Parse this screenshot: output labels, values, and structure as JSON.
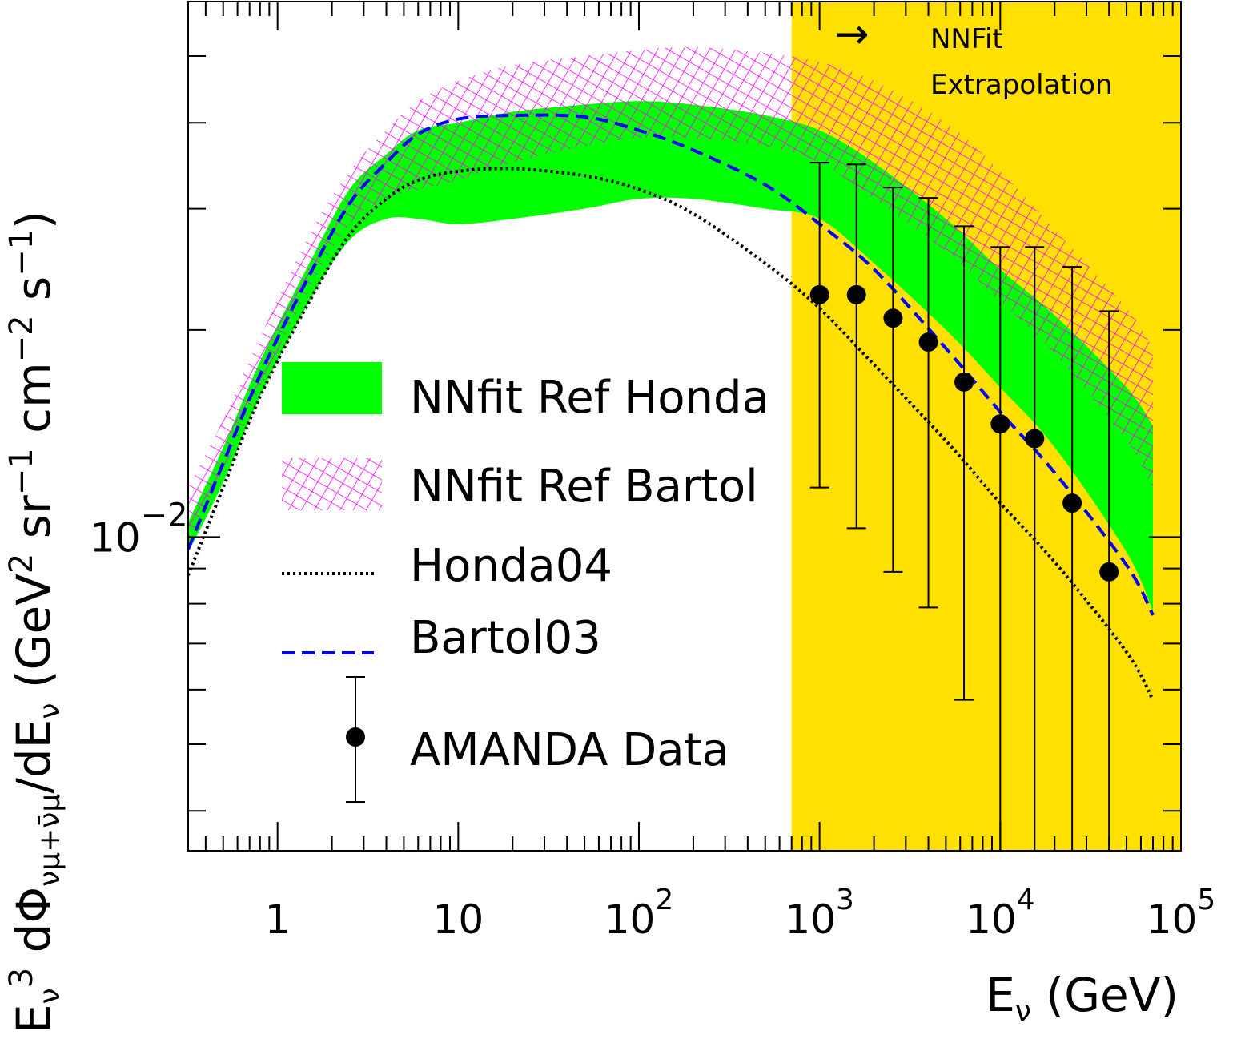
{
  "chart_data": {
    "type": "line",
    "title": "",
    "xlabel": "E_ν (GeV)",
    "ylabel": "E_ν³ dΦ_νμ+ν̄μ / dE_ν (GeV² sr⁻¹ cm⁻² s⁻¹)",
    "x_scale": "log",
    "y_scale": "log",
    "xlim": [
      0.32,
      100000
    ],
    "ylim": [
      0.0035,
      0.06
    ],
    "x_ticks": [
      {
        "value": 1,
        "label": "1"
      },
      {
        "value": 10,
        "label": "10"
      },
      {
        "value": 100,
        "label": "10",
        "sup": "2"
      },
      {
        "value": 1000,
        "label": "10",
        "sup": "3"
      },
      {
        "value": 10000,
        "label": "10",
        "sup": "4"
      },
      {
        "value": 100000,
        "label": "10",
        "sup": "5"
      }
    ],
    "y_ticks": [
      {
        "value": 0.01,
        "label": "10",
        "sup": "−2"
      }
    ],
    "extrapolation_region": {
      "from": 700,
      "to": 100000,
      "color": "#ffe000"
    },
    "annotation": {
      "arrow": "→",
      "line1": "NNFit",
      "line2": "Extrapolation"
    },
    "series": [
      {
        "name": "NNfit Ref Honda",
        "kind": "band",
        "color": "#00ff00",
        "x": [
          0.32,
          0.5,
          0.8,
          1.5,
          2.5,
          4,
          6,
          10,
          20,
          50,
          100,
          200,
          500,
          1000,
          2000,
          5000,
          10000,
          20000,
          50000,
          70000
        ],
        "lower": [
          0.0095,
          0.012,
          0.016,
          0.022,
          0.027,
          0.029,
          0.029,
          0.0285,
          0.029,
          0.03,
          0.031,
          0.031,
          0.03,
          0.029,
          0.025,
          0.02,
          0.0165,
          0.0135,
          0.0095,
          0.0078
        ],
        "upper": [
          0.0105,
          0.0135,
          0.018,
          0.025,
          0.032,
          0.036,
          0.039,
          0.04,
          0.0415,
          0.0425,
          0.043,
          0.0425,
          0.041,
          0.039,
          0.035,
          0.029,
          0.0245,
          0.021,
          0.0165,
          0.0145
        ]
      },
      {
        "name": "NNfit Ref Bartol",
        "kind": "hatched-band",
        "color": "#ff00ff",
        "x": [
          0.32,
          0.5,
          0.8,
          1.5,
          2.5,
          4,
          6,
          10,
          20,
          50,
          100,
          200,
          500,
          1000,
          2000,
          5000,
          10000,
          20000,
          50000,
          70000
        ],
        "lower": [
          0.0098,
          0.0125,
          0.0165,
          0.023,
          0.0285,
          0.031,
          0.032,
          0.033,
          0.035,
          0.037,
          0.038,
          0.038,
          0.037,
          0.035,
          0.031,
          0.026,
          0.022,
          0.0185,
          0.0138,
          0.0118
        ],
        "upper": [
          0.0118,
          0.0148,
          0.0195,
          0.0275,
          0.034,
          0.039,
          0.043,
          0.046,
          0.0485,
          0.05,
          0.051,
          0.0515,
          0.0505,
          0.049,
          0.046,
          0.04,
          0.034,
          0.028,
          0.0215,
          0.0188
        ]
      },
      {
        "name": "Honda04",
        "kind": "line",
        "style": "dotted",
        "color": "#000000",
        "x": [
          0.32,
          0.5,
          0.8,
          1.5,
          2.5,
          4,
          6,
          10,
          20,
          50,
          100,
          200,
          500,
          1000,
          2000,
          5000,
          10000,
          20000,
          50000,
          70000
        ],
        "values": [
          0.0088,
          0.0118,
          0.016,
          0.022,
          0.0275,
          0.031,
          0.033,
          0.034,
          0.0343,
          0.0335,
          0.032,
          0.0295,
          0.025,
          0.0215,
          0.0178,
          0.0138,
          0.0112,
          0.0092,
          0.0068,
          0.0058
        ]
      },
      {
        "name": "Bartol03",
        "kind": "line",
        "style": "dashed",
        "color": "#0000ff",
        "x": [
          0.32,
          0.5,
          0.8,
          1.5,
          2.5,
          4,
          6,
          10,
          20,
          50,
          100,
          200,
          500,
          1000,
          2000,
          5000,
          10000,
          20000,
          50000,
          70000
        ],
        "values": [
          0.0096,
          0.0128,
          0.0172,
          0.024,
          0.0305,
          0.035,
          0.0385,
          0.0405,
          0.041,
          0.0408,
          0.039,
          0.0365,
          0.0325,
          0.0285,
          0.0245,
          0.0188,
          0.0152,
          0.0124,
          0.0091,
          0.0077
        ]
      }
    ],
    "amanda_data": {
      "name": "AMANDA Data",
      "kind": "points-with-errors",
      "color": "#000000",
      "points": [
        {
          "x": 1000,
          "y": 0.0225,
          "lo": 0.0118,
          "hi": 0.035
        },
        {
          "x": 1600,
          "y": 0.0225,
          "lo": 0.0103,
          "hi": 0.0348
        },
        {
          "x": 2550,
          "y": 0.0208,
          "lo": 0.0089,
          "hi": 0.0322
        },
        {
          "x": 4000,
          "y": 0.0192,
          "lo": 0.0079,
          "hi": 0.0311
        },
        {
          "x": 6300,
          "y": 0.0168,
          "lo": 0.0058,
          "hi": 0.0283
        },
        {
          "x": 10000,
          "y": 0.0146,
          "lo": 0.0035,
          "hi": 0.0264
        },
        {
          "x": 15500,
          "y": 0.0139,
          "lo": 0.0035,
          "hi": 0.0264
        },
        {
          "x": 25000,
          "y": 0.0112,
          "lo": 0.0035,
          "hi": 0.0247
        },
        {
          "x": 40000,
          "y": 0.0089,
          "lo": 0.0035,
          "hi": 0.0213
        }
      ]
    },
    "legend": {
      "placement": "lower-left",
      "entries": [
        {
          "label": "NNfit Ref Honda",
          "symbol": "band"
        },
        {
          "label": "NNfit Ref Bartol",
          "symbol": "hatched-band"
        },
        {
          "label": "Honda04",
          "symbol": "dotted-line"
        },
        {
          "label": "Bartol03",
          "symbol": "dashed-line"
        },
        {
          "label": "AMANDA Data",
          "symbol": "point-errorbar"
        }
      ]
    }
  }
}
